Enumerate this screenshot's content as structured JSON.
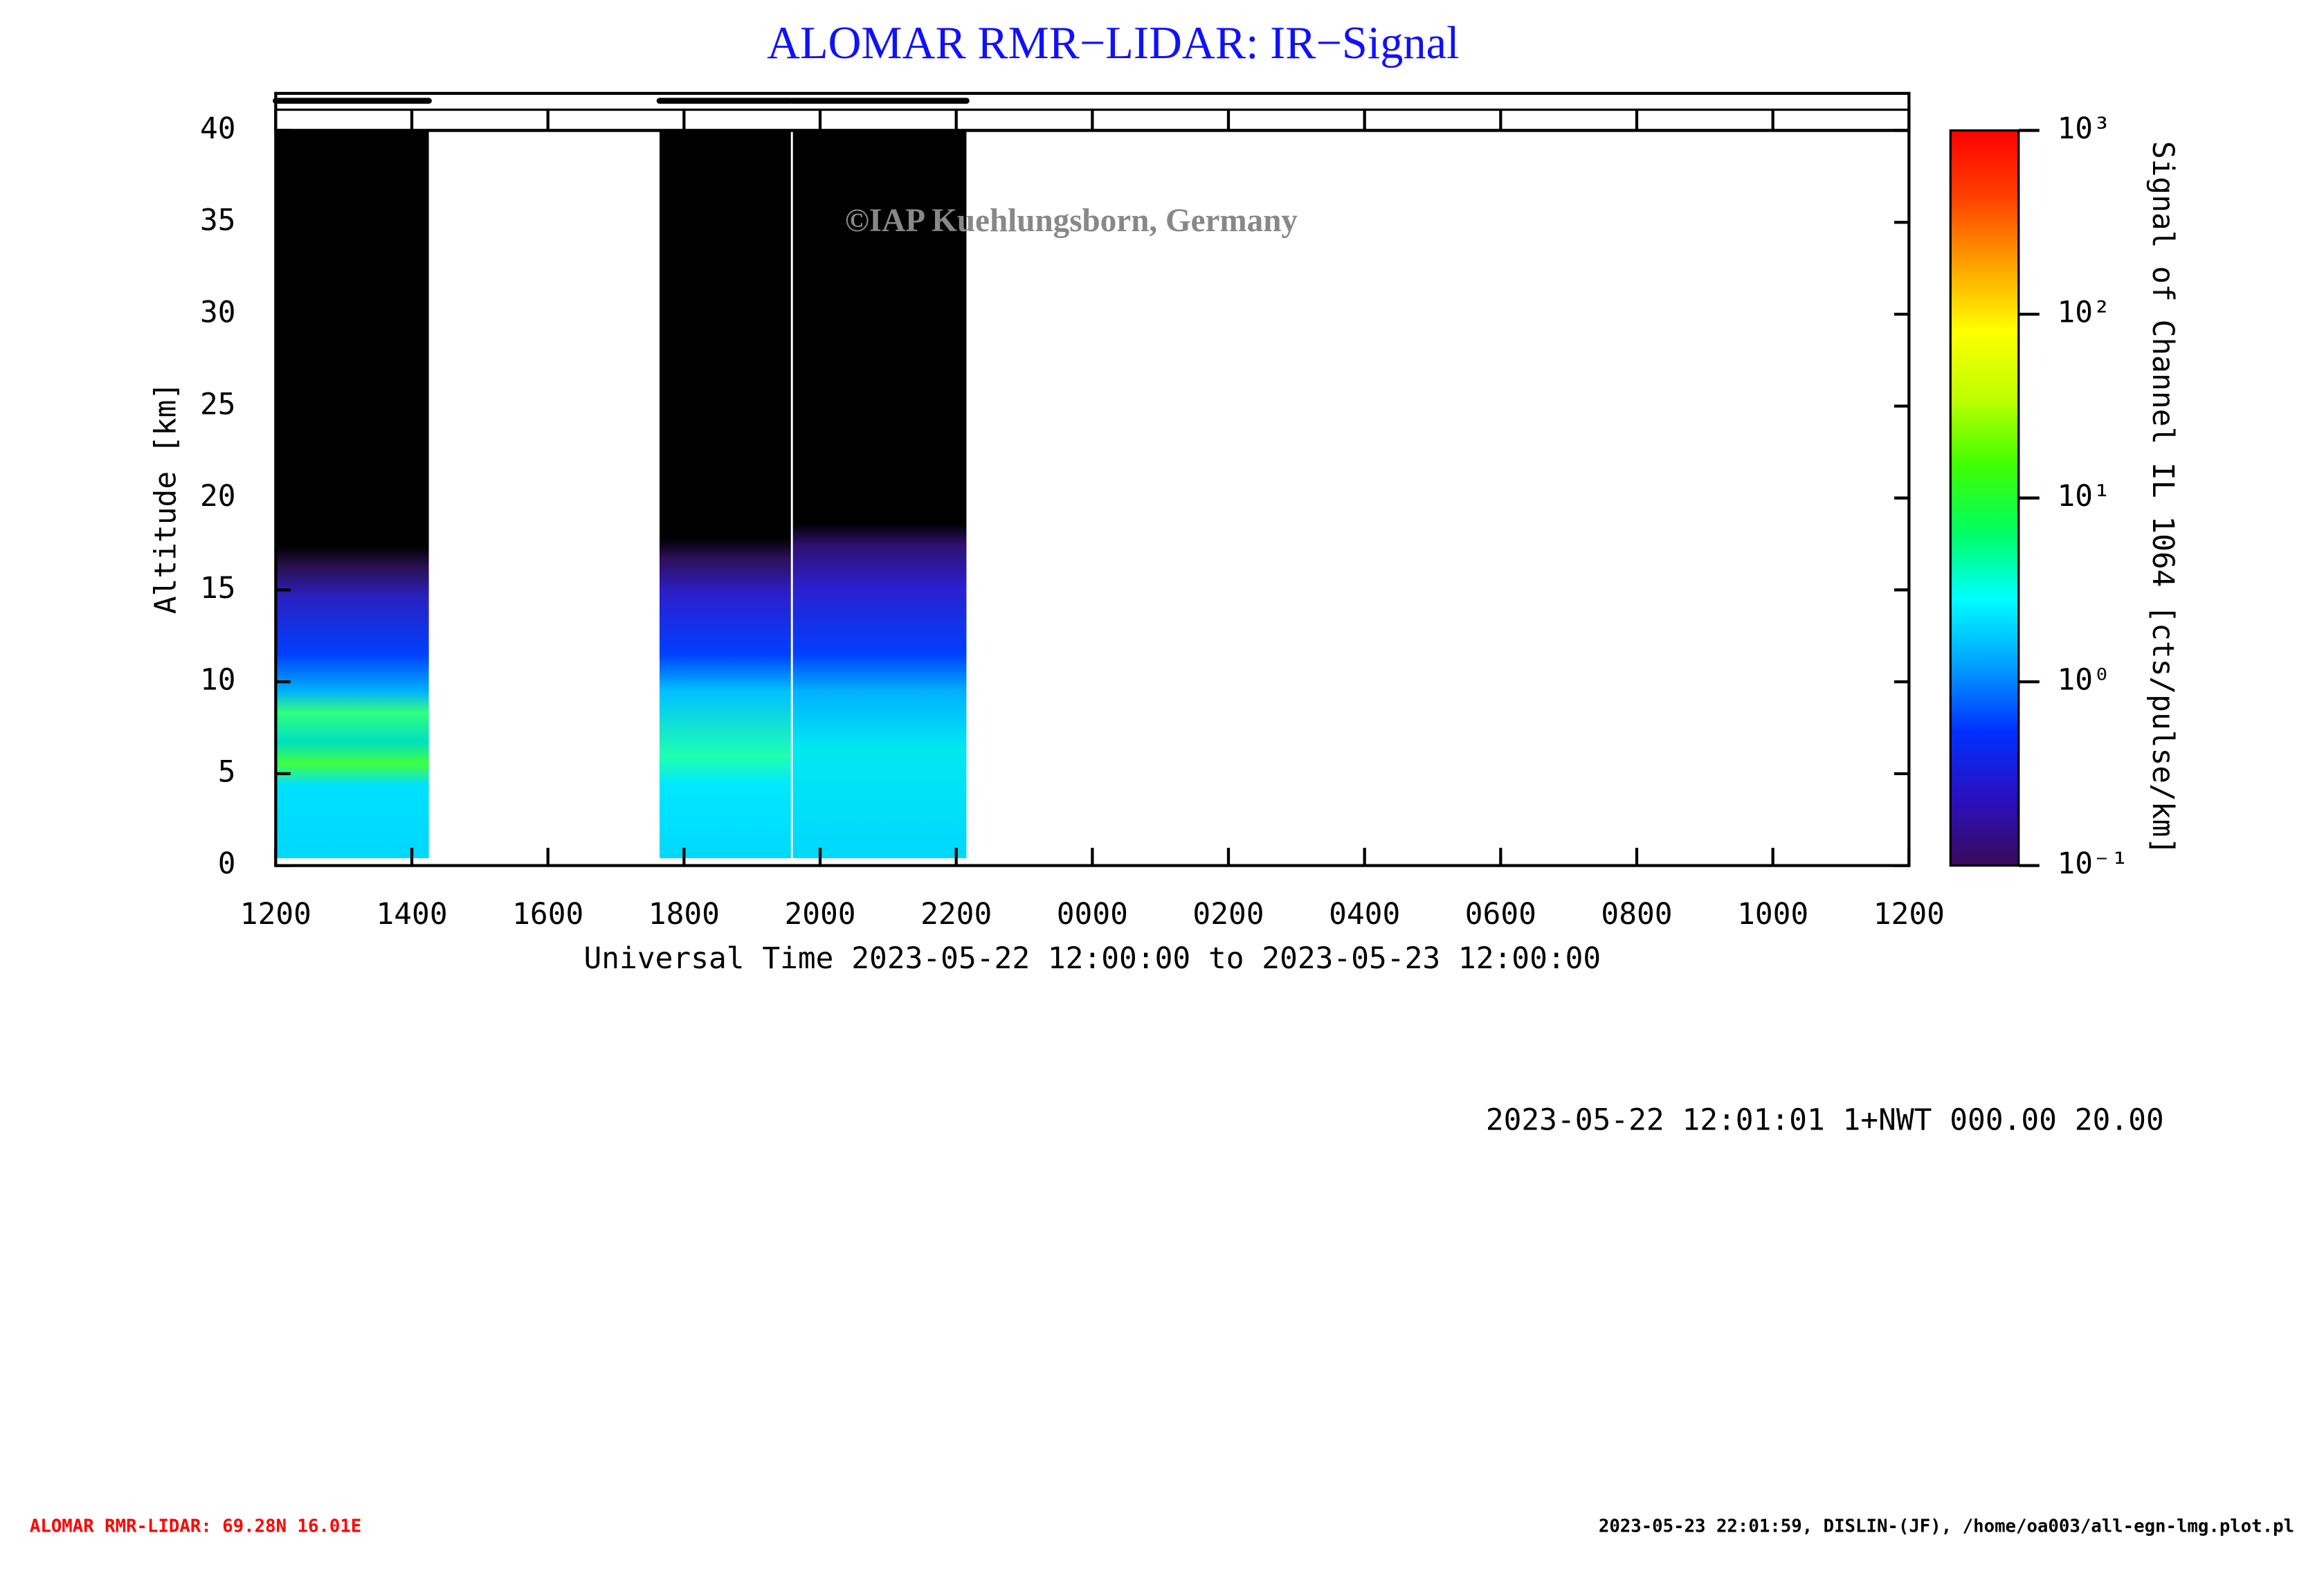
{
  "chart_data": {
    "type": "heatmap",
    "title": "ALOMAR RMR−LIDAR: IR−Signal",
    "watermark": "©IAP Kuehlungsborn, Germany",
    "x_label": "Universal Time 2023-05-22 12:00:00 to 2023-05-23 12:00:00",
    "y_label": "Altitude [km]",
    "colorbar_label": "Signal of Channel IL 1064 [cts/pulse/km]",
    "xlim": [
      0,
      24
    ],
    "xticks": [
      {
        "value": 0,
        "label": "1200"
      },
      {
        "value": 2,
        "label": "1400"
      },
      {
        "value": 4,
        "label": "1600"
      },
      {
        "value": 6,
        "label": "1800"
      },
      {
        "value": 8,
        "label": "2000"
      },
      {
        "value": 10,
        "label": "2200"
      },
      {
        "value": 12,
        "label": "0000"
      },
      {
        "value": 14,
        "label": "0200"
      },
      {
        "value": 16,
        "label": "0400"
      },
      {
        "value": 18,
        "label": "0600"
      },
      {
        "value": 20,
        "label": "0800"
      },
      {
        "value": 22,
        "label": "1000"
      },
      {
        "value": 24,
        "label": "1200"
      }
    ],
    "ylim": [
      0,
      40
    ],
    "yticks": [
      0,
      5,
      10,
      15,
      20,
      25,
      30,
      35,
      40
    ],
    "clim": [
      0.1,
      1000
    ],
    "color_scale": "log",
    "cticks": [
      {
        "value": 0.1,
        "label": "10⁻¹"
      },
      {
        "value": 1,
        "label": "10⁰"
      },
      {
        "value": 10,
        "label": "10¹"
      },
      {
        "value": 100,
        "label": "10²"
      },
      {
        "value": 1000,
        "label": "10³"
      }
    ],
    "colormap": [
      "#3a0a5a",
      "#2a10c0",
      "#0030ff",
      "#00a0ff",
      "#00ffff",
      "#00ff60",
      "#40ff00",
      "#c0ff00",
      "#ffff00",
      "#ffa000",
      "#ff4000",
      "#ff0000"
    ],
    "periods": [
      {
        "start": 0,
        "end": 2.25
      },
      {
        "start": 5.64,
        "end": 7.57
      },
      {
        "start": 7.6,
        "end": 10.15
      }
    ],
    "info": "2023-05-22 12:01:01 1+NWT 000.00 20.00",
    "footer_left": "ALOMAR RMR-LIDAR: 69.28N 16.01E",
    "footer_right": "2023-05-23 22:01:59, DISLIN-(JF), /home/oa003/all-egn-lmg.plot.pl"
  }
}
